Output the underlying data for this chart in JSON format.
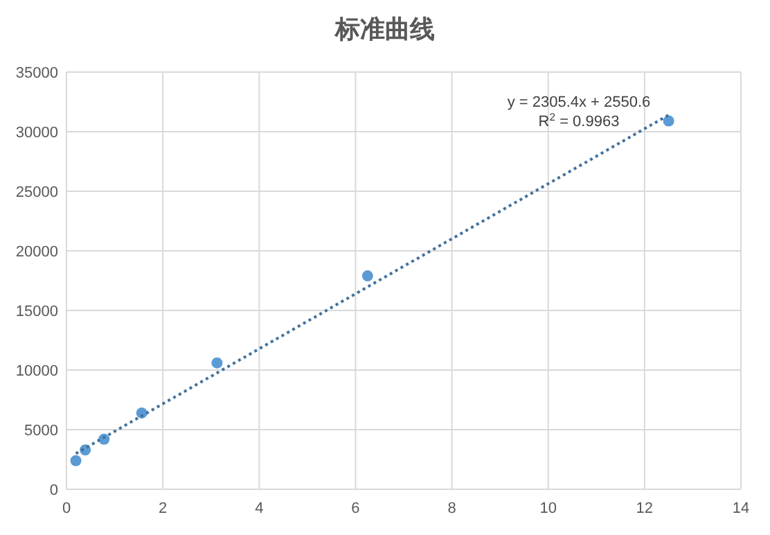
{
  "chart_data": {
    "type": "scatter",
    "title": "标准曲线",
    "marker": "circle",
    "grid": true,
    "xlim": [
      0,
      14
    ],
    "xticks": [
      0,
      2,
      4,
      6,
      8,
      10,
      12,
      14
    ],
    "ylim": [
      0,
      35000
    ],
    "yticks": [
      0,
      5000,
      10000,
      15000,
      20000,
      25000,
      30000,
      35000
    ],
    "series": [
      {
        "color": "#5b9bd5",
        "x": [
          0.195,
          0.39,
          0.78,
          1.5625,
          3.125,
          6.25,
          12.5
        ],
        "values": [
          2400,
          3300,
          4200,
          6400,
          10600,
          17900,
          30900
        ]
      },
      {
        "type": "line",
        "color": "#41719c",
        "line_style": "dotted",
        "marker": "none",
        "x": [
          0.195,
          12.5
        ],
        "values": [
          3000,
          31400
        ]
      }
    ],
    "annotations": [
      "y = 2305.4x + 2550.6",
      "R$^{2}$ = 0.9963"
    ]
  }
}
